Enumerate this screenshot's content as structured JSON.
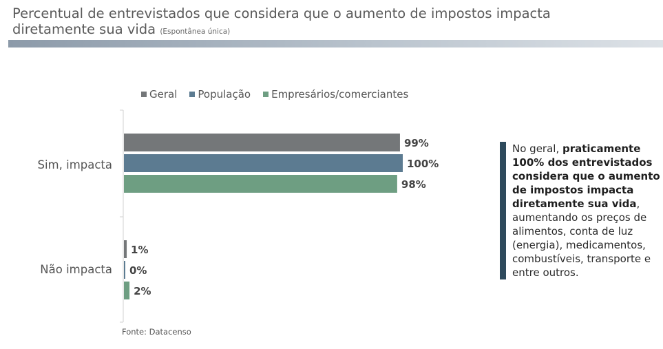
{
  "title": "Percentual de entrevistados que considera que o aumento de impostos impacta",
  "title_line2": "diretamente sua vida",
  "subtitle": "(Espontânea única)",
  "source": "Fonte: Datacenso",
  "colors": {
    "geral": "#747779",
    "populacao": "#5c7b91",
    "empresarios": "#6e9e82",
    "note_bar": "#2e4a5c"
  },
  "note": {
    "part1": "No geral, ",
    "bold": "praticamente 100% dos entrevistados considera que o aumento de impostos impacta diretamente sua vida",
    "part2": ", aumentando os preços de alimentos, conta de luz (energia), medicamentos, combustíveis, transporte e entre outros."
  },
  "chart_data": {
    "type": "bar",
    "orientation": "horizontal",
    "categories": [
      "Sim, impacta",
      "Não impacta"
    ],
    "series": [
      {
        "name": "Geral",
        "values": [
          99,
          1
        ],
        "labels": [
          "99%",
          "1%"
        ]
      },
      {
        "name": "População",
        "values": [
          100,
          0
        ],
        "labels": [
          "100%",
          "0%"
        ]
      },
      {
        "name": "Empresários/comerciantes",
        "values": [
          98,
          2
        ],
        "labels": [
          "98%",
          "2%"
        ]
      }
    ],
    "xlim": [
      0,
      100
    ],
    "legend": "top"
  }
}
